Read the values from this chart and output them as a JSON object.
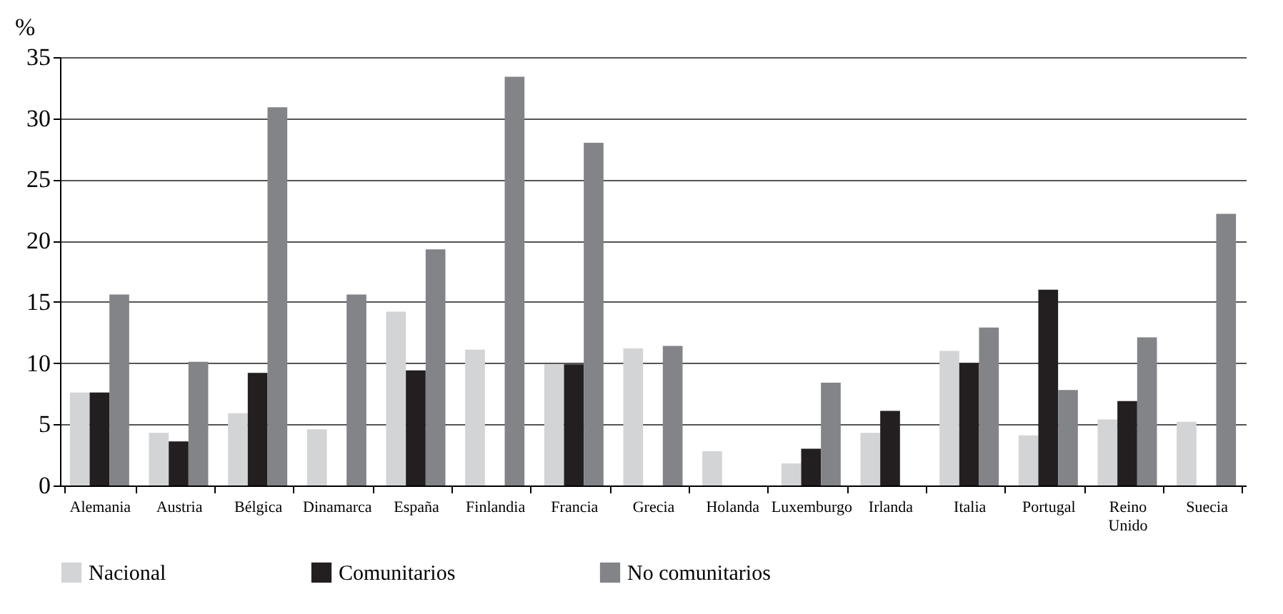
{
  "chart_data": {
    "type": "bar",
    "ylabel": "%",
    "categories": [
      "Alemania",
      "Austria",
      "Bélgica",
      "Dinamarca",
      "España",
      "Finlandia",
      "Francia",
      "Grecia",
      "Holanda",
      "Luxemburgo",
      "Irlanda",
      "Italia",
      "Portugal",
      "Reino Unido",
      "Suecia"
    ],
    "series": [
      {
        "name": "Nacional",
        "color": "#d3d4d6",
        "values": [
          7.6,
          4.3,
          5.9,
          4.6,
          14.2,
          11.1,
          9.9,
          11.2,
          2.8,
          1.8,
          4.3,
          11.0,
          4.1,
          5.4,
          5.2
        ]
      },
      {
        "name": "Comunitarios",
        "color": "#231f20",
        "values": [
          7.6,
          3.6,
          9.2,
          null,
          9.4,
          null,
          9.9,
          null,
          null,
          3.0,
          6.1,
          10.0,
          16.0,
          6.9,
          null
        ]
      },
      {
        "name": "No comunitarios",
        "color": "#838488",
        "values": [
          15.6,
          10.1,
          30.9,
          15.6,
          19.3,
          33.4,
          28.0,
          11.4,
          null,
          8.4,
          null,
          12.9,
          7.8,
          12.1,
          22.2
        ]
      }
    ],
    "ylim": [
      0,
      35
    ],
    "yticks": [
      0,
      5,
      10,
      15,
      20,
      25,
      30,
      35
    ],
    "grid": "y",
    "legend": "bottom"
  }
}
